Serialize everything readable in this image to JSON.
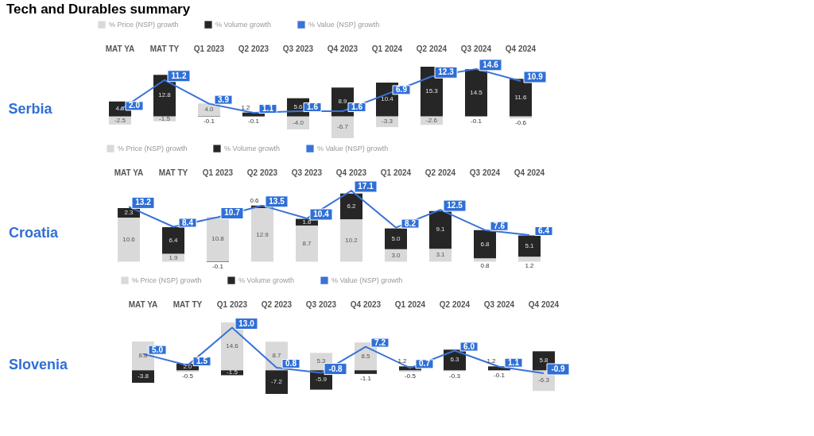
{
  "chart_data": [
    {
      "type": "bar",
      "title": "Serbia",
      "annotations": [
        "Tech and Durables summary"
      ],
      "categories": [
        "MAT YA",
        "MAT TY",
        "Q1 2023",
        "Q2 2023",
        "Q3 2023",
        "Q4 2023",
        "Q1 2024",
        "Q2 2024",
        "Q3 2024",
        "Q4 2024"
      ],
      "stacked": true,
      "legend": "top",
      "series": [
        {
          "name": "% Price (NSP) growth",
          "color": "#d9d9d9",
          "values": [
            -2.5,
            -1.5,
            4.0,
            -0.1,
            -4.0,
            -6.7,
            -3.3,
            -2.6,
            -0.1,
            -0.6
          ],
          "value_labels": [
            "-2.5",
            "-1.5",
            "4.0",
            "-0.1",
            "-4.0",
            "-6.7",
            "-3.3",
            "-2.6",
            "-0.1",
            "-0.6"
          ]
        },
        {
          "name": "% Volume growth",
          "color": "#262626",
          "values": [
            4.6,
            12.8,
            -0.1,
            1.2,
            5.6,
            8.9,
            10.4,
            15.3,
            14.5,
            11.6
          ],
          "value_labels": [
            "4.6",
            "12.8",
            "-0.1",
            "1.2",
            "5.6",
            "8.9",
            "10.4",
            "15.3",
            "14.5",
            "11.6"
          ]
        },
        {
          "name": "% Value (NSP) growth",
          "type": "line",
          "color": "#3a72d8",
          "values": [
            2.0,
            11.2,
            3.9,
            1.1,
            1.6,
            1.6,
            6.9,
            12.3,
            14.6,
            10.9
          ],
          "value_labels": [
            "2.0",
            "11.2",
            "3.9",
            "1.1",
            "1.6",
            "1.6",
            "6.9",
            "12.3",
            "14.6",
            "10.9"
          ]
        }
      ]
    },
    {
      "type": "bar",
      "title": "Croatia",
      "categories": [
        "MAT YA",
        "MAT TY",
        "Q1 2023",
        "Q2 2023",
        "Q3 2023",
        "Q4 2023",
        "Q1 2024",
        "Q2 2024",
        "Q3 2024",
        "Q4 2024"
      ],
      "stacked": true,
      "legend": "top",
      "series": [
        {
          "name": "% Price (NSP) growth",
          "color": "#d9d9d9",
          "values": [
            10.6,
            1.9,
            10.8,
            12.9,
            8.7,
            10.2,
            3.0,
            3.1,
            0.8,
            1.2
          ],
          "value_labels": [
            "10.6",
            "1.9",
            "10.8",
            "12.9",
            "8.7",
            "10.2",
            "3.0",
            "3.1",
            "0.8",
            "1.2"
          ]
        },
        {
          "name": "% Volume growth",
          "color": "#262626",
          "values": [
            2.3,
            6.4,
            -0.1,
            0.6,
            1.6,
            6.2,
            5.0,
            9.1,
            6.8,
            5.1
          ],
          "value_labels": [
            "2.3",
            "6.4",
            "-0.1",
            "0.6",
            "1.6",
            "6.2",
            "5.0",
            "9.1",
            "6.8",
            "5.1"
          ]
        },
        {
          "name": "% Value (NSP) growth",
          "type": "line",
          "color": "#3a72d8",
          "values": [
            13.2,
            8.4,
            10.7,
            13.5,
            10.4,
            17.1,
            8.2,
            12.5,
            7.6,
            6.4
          ],
          "value_labels": [
            "13.2",
            "8.4",
            "10.7",
            "13.5",
            "10.4",
            "17.1",
            "8.2",
            "12.5",
            "7.6",
            "6.4"
          ]
        }
      ]
    },
    {
      "type": "bar",
      "title": "Slovenia",
      "categories": [
        "MAT YA",
        "MAT TY",
        "Q1 2023",
        "Q2 2023",
        "Q3 2023",
        "Q4 2023",
        "Q1 2024",
        "Q2 2024",
        "Q3 2024",
        "Q4 2024"
      ],
      "stacked": true,
      "legend": "top",
      "series": [
        {
          "name": "% Price (NSP) growth",
          "color": "#d9d9d9",
          "values": [
            8.8,
            -0.5,
            14.6,
            8.7,
            5.3,
            8.5,
            -0.5,
            -0.3,
            -0.1,
            -6.3
          ],
          "value_labels": [
            "8.8",
            "-0.5",
            "14.6",
            "8.7",
            "5.3",
            "8.5",
            "-0.5",
            "-0.3",
            "-0.1",
            "-6.3"
          ]
        },
        {
          "name": "% Volume growth",
          "color": "#262626",
          "values": [
            -3.8,
            2.0,
            -1.5,
            -7.2,
            -5.9,
            -1.1,
            1.2,
            6.3,
            1.2,
            5.8
          ],
          "value_labels": [
            "-3.8",
            "2.0",
            "-1.5",
            "-7.2",
            "-5.9",
            "-1.1",
            "1.2",
            "6.3",
            "1.2",
            "5.8"
          ]
        },
        {
          "name": "% Value (NSP) growth",
          "type": "line",
          "color": "#3a72d8",
          "values": [
            5.0,
            1.5,
            13.0,
            0.8,
            -0.8,
            7.2,
            0.7,
            6.0,
            1.1,
            -0.9
          ],
          "value_labels": [
            "5.0",
            "1.5",
            "13.0",
            "0.8",
            "-0.8",
            "7.2",
            "0.7",
            "6.0",
            "1.1",
            "-0.9"
          ]
        }
      ]
    }
  ]
}
